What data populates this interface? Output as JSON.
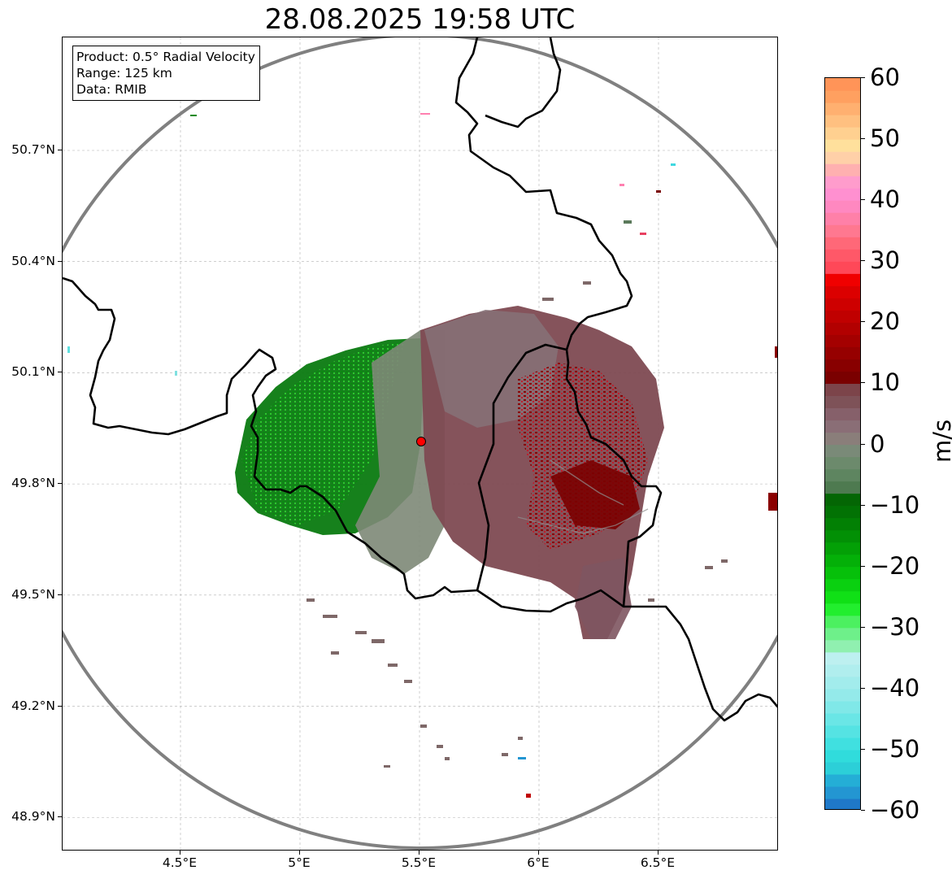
{
  "title": "28.08.2025 19:58 UTC",
  "info_box": {
    "product": "Product: 0.5° Radial Velocity",
    "range": "Range: 125 km",
    "data": "Data: RMIB"
  },
  "map": {
    "lon_range": [
      4.0,
      7.0
    ],
    "lat_range": [
      48.8,
      50.98
    ],
    "x_ticks": [
      {
        "value": 4.5,
        "label": "4.5°E"
      },
      {
        "value": 5.0,
        "label": "5°E"
      },
      {
        "value": 5.5,
        "label": "5.5°E"
      },
      {
        "value": 6.0,
        "label": "6°E"
      },
      {
        "value": 6.5,
        "label": "6.5°E"
      }
    ],
    "y_ticks": [
      {
        "value": 50.7,
        "label": "50.7°N"
      },
      {
        "value": 50.4,
        "label": "50.4°N"
      },
      {
        "value": 50.1,
        "label": "50.1°N"
      },
      {
        "value": 49.8,
        "label": "49.8°N"
      },
      {
        "value": 49.5,
        "label": "49.5°N"
      },
      {
        "value": 49.2,
        "label": "49.2°N"
      },
      {
        "value": 48.9,
        "label": "48.9°N"
      }
    ],
    "grid": true,
    "radar_site": {
      "lon": 5.505,
      "lat": 49.914
    },
    "range_ring_km": 125,
    "colors": {
      "range_ring": "#808080",
      "borders": "#000000",
      "radar_marker": "#ff0000",
      "grid": "#b0b0b0"
    }
  },
  "colorbar": {
    "unit": "m/s",
    "min": -60,
    "max": 60,
    "ticks": [
      {
        "value": 60,
        "label": "60"
      },
      {
        "value": 50,
        "label": "50"
      },
      {
        "value": 40,
        "label": "40"
      },
      {
        "value": 30,
        "label": "30"
      },
      {
        "value": 20,
        "label": "20"
      },
      {
        "value": 10,
        "label": "10"
      },
      {
        "value": 0,
        "label": "0"
      },
      {
        "value": -10,
        "label": "−10"
      },
      {
        "value": -20,
        "label": "−20"
      },
      {
        "value": -30,
        "label": "−30"
      },
      {
        "value": -40,
        "label": "−40"
      },
      {
        "value": -50,
        "label": "−50"
      },
      {
        "value": -60,
        "label": "−60"
      }
    ],
    "bands": [
      {
        "from": -60,
        "to": -58,
        "color": "#1f78c8"
      },
      {
        "from": -58,
        "to": -56,
        "color": "#2396d2"
      },
      {
        "from": -56,
        "to": -54,
        "color": "#24aed6"
      },
      {
        "from": -54,
        "to": -52,
        "color": "#2ccfd8"
      },
      {
        "from": -52,
        "to": -50,
        "color": "#30dcdc"
      },
      {
        "from": -50,
        "to": -48,
        "color": "#40e0e0"
      },
      {
        "from": -48,
        "to": -46,
        "color": "#55e3e3"
      },
      {
        "from": -46,
        "to": -44,
        "color": "#6ae6e6"
      },
      {
        "from": -44,
        "to": -42,
        "color": "#80e8e8"
      },
      {
        "from": -42,
        "to": -40,
        "color": "#94eaea"
      },
      {
        "from": -40,
        "to": -38,
        "color": "#a2ecec"
      },
      {
        "from": -38,
        "to": -36,
        "color": "#b0eeee"
      },
      {
        "from": -36,
        "to": -34,
        "color": "#bdf0f0"
      },
      {
        "from": -34,
        "to": -32,
        "color": "#90f0b0"
      },
      {
        "from": -32,
        "to": -30,
        "color": "#6ef08a"
      },
      {
        "from": -30,
        "to": -28,
        "color": "#4cf060"
      },
      {
        "from": -28,
        "to": -26,
        "color": "#22ee2e"
      },
      {
        "from": -26,
        "to": -24,
        "color": "#10e016"
      },
      {
        "from": -24,
        "to": -22,
        "color": "#0ad010"
      },
      {
        "from": -22,
        "to": -20,
        "color": "#06c00a"
      },
      {
        "from": -20,
        "to": -18,
        "color": "#04b008"
      },
      {
        "from": -18,
        "to": -16,
        "color": "#03a006"
      },
      {
        "from": -16,
        "to": -14,
        "color": "#029005"
      },
      {
        "from": -14,
        "to": -12,
        "color": "#028004"
      },
      {
        "from": -12,
        "to": -10,
        "color": "#027204"
      },
      {
        "from": -10,
        "to": -8,
        "color": "#046604"
      },
      {
        "from": -8,
        "to": -6,
        "color": "#4e7a50"
      },
      {
        "from": -6,
        "to": -4,
        "color": "#5e8560"
      },
      {
        "from": -4,
        "to": -2,
        "color": "#6c8a6c"
      },
      {
        "from": -2,
        "to": 0,
        "color": "#7a8a78"
      },
      {
        "from": 0,
        "to": 2,
        "color": "#8a7e7a"
      },
      {
        "from": 2,
        "to": 4,
        "color": "#8a6e76"
      },
      {
        "from": 4,
        "to": 6,
        "color": "#86606a"
      },
      {
        "from": 6,
        "to": 8,
        "color": "#7e5258"
      },
      {
        "from": 8,
        "to": 10,
        "color": "#7c444a"
      },
      {
        "from": 10,
        "to": 12,
        "color": "#7a0000"
      },
      {
        "from": 12,
        "to": 14,
        "color": "#880000"
      },
      {
        "from": 14,
        "to": 16,
        "color": "#960000"
      },
      {
        "from": 16,
        "to": 18,
        "color": "#a40000"
      },
      {
        "from": 18,
        "to": 20,
        "color": "#b20000"
      },
      {
        "from": 20,
        "to": 22,
        "color": "#c00000"
      },
      {
        "from": 22,
        "to": 24,
        "color": "#ce0000"
      },
      {
        "from": 24,
        "to": 26,
        "color": "#dc0000"
      },
      {
        "from": 26,
        "to": 28,
        "color": "#f00000"
      },
      {
        "from": 28,
        "to": 30,
        "color": "#ff4858"
      },
      {
        "from": 30,
        "to": 32,
        "color": "#ff5868"
      },
      {
        "from": 32,
        "to": 34,
        "color": "#ff6878"
      },
      {
        "from": 34,
        "to": 36,
        "color": "#ff7890"
      },
      {
        "from": 36,
        "to": 38,
        "color": "#ff80a8"
      },
      {
        "from": 38,
        "to": 40,
        "color": "#ff88c0"
      },
      {
        "from": 40,
        "to": 42,
        "color": "#ff90d0"
      },
      {
        "from": 42,
        "to": 44,
        "color": "#ff9ccc"
      },
      {
        "from": 44,
        "to": 46,
        "color": "#ffb0b0"
      },
      {
        "from": 46,
        "to": 48,
        "color": "#ffd0a8"
      },
      {
        "from": 48,
        "to": 50,
        "color": "#ffe09c"
      },
      {
        "from": 50,
        "to": 52,
        "color": "#ffd090"
      },
      {
        "from": 52,
        "to": 54,
        "color": "#ffc080"
      },
      {
        "from": 54,
        "to": 56,
        "color": "#ffb070"
      },
      {
        "from": 56,
        "to": 58,
        "color": "#ffa060"
      },
      {
        "from": 58,
        "to": 60,
        "color": "#ff9458"
      }
    ]
  }
}
